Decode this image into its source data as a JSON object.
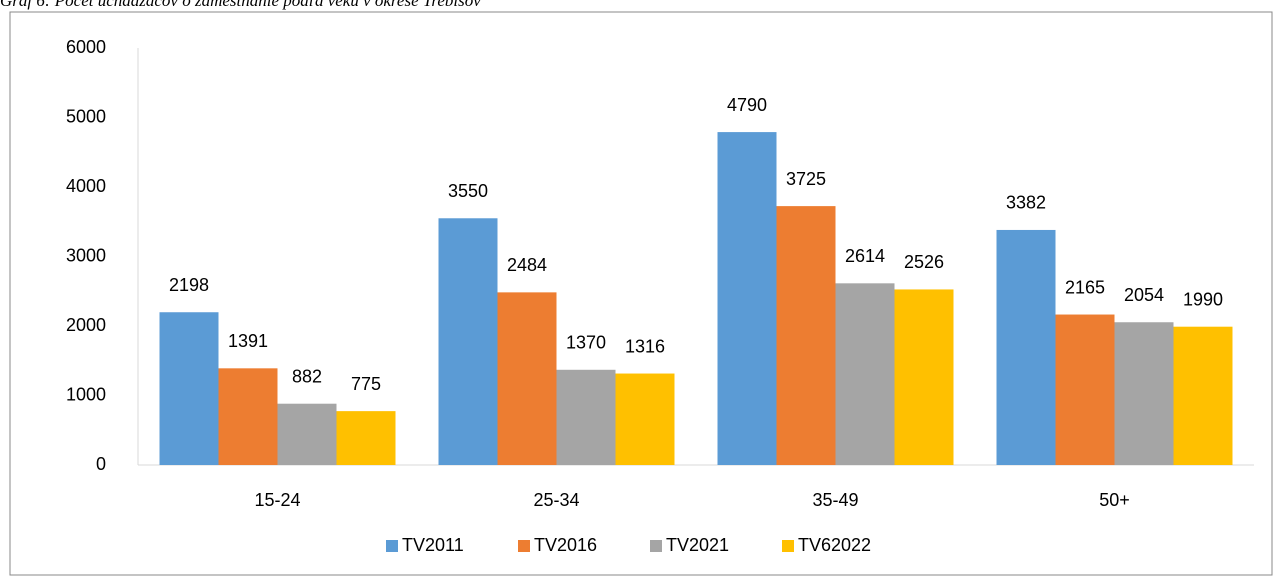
{
  "caption": "Graf 6: Počet uchádzačov o zamestnanie podľa veku v okrese Trebišov",
  "chart_data": {
    "type": "bar",
    "categories": [
      "15-24",
      "25-34",
      "35-49",
      "50+"
    ],
    "series": [
      {
        "name": "TV2011",
        "color": "#5b9bd5",
        "values": [
          2198,
          3550,
          4790,
          3382
        ]
      },
      {
        "name": "TV2016",
        "color": "#ed7d31",
        "values": [
          1391,
          2484,
          3725,
          2165
        ]
      },
      {
        "name": "TV2021",
        "color": "#a5a5a5",
        "values": [
          882,
          1370,
          2614,
          2054
        ]
      },
      {
        "name": "TV62022",
        "color": "#ffc000",
        "values": [
          775,
          1316,
          2526,
          1990
        ]
      }
    ],
    "ylim": [
      0,
      6000
    ],
    "yticks": [
      0,
      1000,
      2000,
      3000,
      4000,
      5000,
      6000
    ],
    "grid": false,
    "legend": "bottom"
  }
}
